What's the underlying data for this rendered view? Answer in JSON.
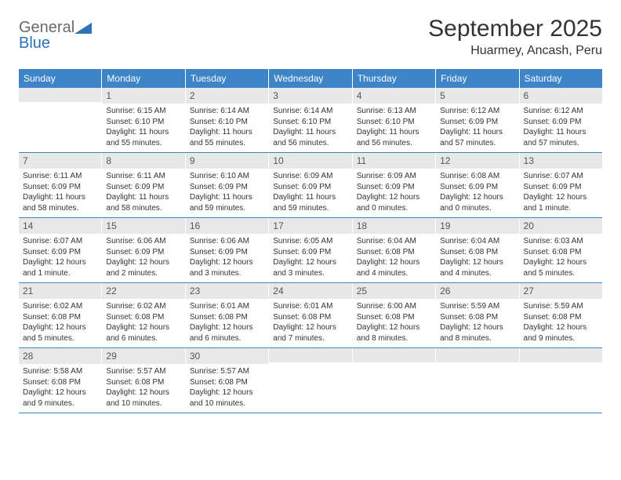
{
  "logo": {
    "general": "General",
    "blue": "Blue"
  },
  "title": "September 2025",
  "location": "Huarmey, Ancash, Peru",
  "colors": {
    "header_bg": "#3d85c6",
    "header_text": "#ffffff",
    "daynum_bg": "#e8e8e8",
    "text": "#333333",
    "border": "#3d85c6",
    "logo_gray": "#6a6a6a",
    "logo_blue": "#2d72b8"
  },
  "day_names": [
    "Sunday",
    "Monday",
    "Tuesday",
    "Wednesday",
    "Thursday",
    "Friday",
    "Saturday"
  ],
  "weeks": [
    [
      {
        "num": "",
        "sunrise": "",
        "sunset": "",
        "daylight": ""
      },
      {
        "num": "1",
        "sunrise": "Sunrise: 6:15 AM",
        "sunset": "Sunset: 6:10 PM",
        "daylight": "Daylight: 11 hours and 55 minutes."
      },
      {
        "num": "2",
        "sunrise": "Sunrise: 6:14 AM",
        "sunset": "Sunset: 6:10 PM",
        "daylight": "Daylight: 11 hours and 55 minutes."
      },
      {
        "num": "3",
        "sunrise": "Sunrise: 6:14 AM",
        "sunset": "Sunset: 6:10 PM",
        "daylight": "Daylight: 11 hours and 56 minutes."
      },
      {
        "num": "4",
        "sunrise": "Sunrise: 6:13 AM",
        "sunset": "Sunset: 6:10 PM",
        "daylight": "Daylight: 11 hours and 56 minutes."
      },
      {
        "num": "5",
        "sunrise": "Sunrise: 6:12 AM",
        "sunset": "Sunset: 6:09 PM",
        "daylight": "Daylight: 11 hours and 57 minutes."
      },
      {
        "num": "6",
        "sunrise": "Sunrise: 6:12 AM",
        "sunset": "Sunset: 6:09 PM",
        "daylight": "Daylight: 11 hours and 57 minutes."
      }
    ],
    [
      {
        "num": "7",
        "sunrise": "Sunrise: 6:11 AM",
        "sunset": "Sunset: 6:09 PM",
        "daylight": "Daylight: 11 hours and 58 minutes."
      },
      {
        "num": "8",
        "sunrise": "Sunrise: 6:11 AM",
        "sunset": "Sunset: 6:09 PM",
        "daylight": "Daylight: 11 hours and 58 minutes."
      },
      {
        "num": "9",
        "sunrise": "Sunrise: 6:10 AM",
        "sunset": "Sunset: 6:09 PM",
        "daylight": "Daylight: 11 hours and 59 minutes."
      },
      {
        "num": "10",
        "sunrise": "Sunrise: 6:09 AM",
        "sunset": "Sunset: 6:09 PM",
        "daylight": "Daylight: 11 hours and 59 minutes."
      },
      {
        "num": "11",
        "sunrise": "Sunrise: 6:09 AM",
        "sunset": "Sunset: 6:09 PM",
        "daylight": "Daylight: 12 hours and 0 minutes."
      },
      {
        "num": "12",
        "sunrise": "Sunrise: 6:08 AM",
        "sunset": "Sunset: 6:09 PM",
        "daylight": "Daylight: 12 hours and 0 minutes."
      },
      {
        "num": "13",
        "sunrise": "Sunrise: 6:07 AM",
        "sunset": "Sunset: 6:09 PM",
        "daylight": "Daylight: 12 hours and 1 minute."
      }
    ],
    [
      {
        "num": "14",
        "sunrise": "Sunrise: 6:07 AM",
        "sunset": "Sunset: 6:09 PM",
        "daylight": "Daylight: 12 hours and 1 minute."
      },
      {
        "num": "15",
        "sunrise": "Sunrise: 6:06 AM",
        "sunset": "Sunset: 6:09 PM",
        "daylight": "Daylight: 12 hours and 2 minutes."
      },
      {
        "num": "16",
        "sunrise": "Sunrise: 6:06 AM",
        "sunset": "Sunset: 6:09 PM",
        "daylight": "Daylight: 12 hours and 3 minutes."
      },
      {
        "num": "17",
        "sunrise": "Sunrise: 6:05 AM",
        "sunset": "Sunset: 6:09 PM",
        "daylight": "Daylight: 12 hours and 3 minutes."
      },
      {
        "num": "18",
        "sunrise": "Sunrise: 6:04 AM",
        "sunset": "Sunset: 6:08 PM",
        "daylight": "Daylight: 12 hours and 4 minutes."
      },
      {
        "num": "19",
        "sunrise": "Sunrise: 6:04 AM",
        "sunset": "Sunset: 6:08 PM",
        "daylight": "Daylight: 12 hours and 4 minutes."
      },
      {
        "num": "20",
        "sunrise": "Sunrise: 6:03 AM",
        "sunset": "Sunset: 6:08 PM",
        "daylight": "Daylight: 12 hours and 5 minutes."
      }
    ],
    [
      {
        "num": "21",
        "sunrise": "Sunrise: 6:02 AM",
        "sunset": "Sunset: 6:08 PM",
        "daylight": "Daylight: 12 hours and 5 minutes."
      },
      {
        "num": "22",
        "sunrise": "Sunrise: 6:02 AM",
        "sunset": "Sunset: 6:08 PM",
        "daylight": "Daylight: 12 hours and 6 minutes."
      },
      {
        "num": "23",
        "sunrise": "Sunrise: 6:01 AM",
        "sunset": "Sunset: 6:08 PM",
        "daylight": "Daylight: 12 hours and 6 minutes."
      },
      {
        "num": "24",
        "sunrise": "Sunrise: 6:01 AM",
        "sunset": "Sunset: 6:08 PM",
        "daylight": "Daylight: 12 hours and 7 minutes."
      },
      {
        "num": "25",
        "sunrise": "Sunrise: 6:00 AM",
        "sunset": "Sunset: 6:08 PM",
        "daylight": "Daylight: 12 hours and 8 minutes."
      },
      {
        "num": "26",
        "sunrise": "Sunrise: 5:59 AM",
        "sunset": "Sunset: 6:08 PM",
        "daylight": "Daylight: 12 hours and 8 minutes."
      },
      {
        "num": "27",
        "sunrise": "Sunrise: 5:59 AM",
        "sunset": "Sunset: 6:08 PM",
        "daylight": "Daylight: 12 hours and 9 minutes."
      }
    ],
    [
      {
        "num": "28",
        "sunrise": "Sunrise: 5:58 AM",
        "sunset": "Sunset: 6:08 PM",
        "daylight": "Daylight: 12 hours and 9 minutes."
      },
      {
        "num": "29",
        "sunrise": "Sunrise: 5:57 AM",
        "sunset": "Sunset: 6:08 PM",
        "daylight": "Daylight: 12 hours and 10 minutes."
      },
      {
        "num": "30",
        "sunrise": "Sunrise: 5:57 AM",
        "sunset": "Sunset: 6:08 PM",
        "daylight": "Daylight: 12 hours and 10 minutes."
      },
      {
        "num": "",
        "sunrise": "",
        "sunset": "",
        "daylight": ""
      },
      {
        "num": "",
        "sunrise": "",
        "sunset": "",
        "daylight": ""
      },
      {
        "num": "",
        "sunrise": "",
        "sunset": "",
        "daylight": ""
      },
      {
        "num": "",
        "sunrise": "",
        "sunset": "",
        "daylight": ""
      }
    ]
  ]
}
